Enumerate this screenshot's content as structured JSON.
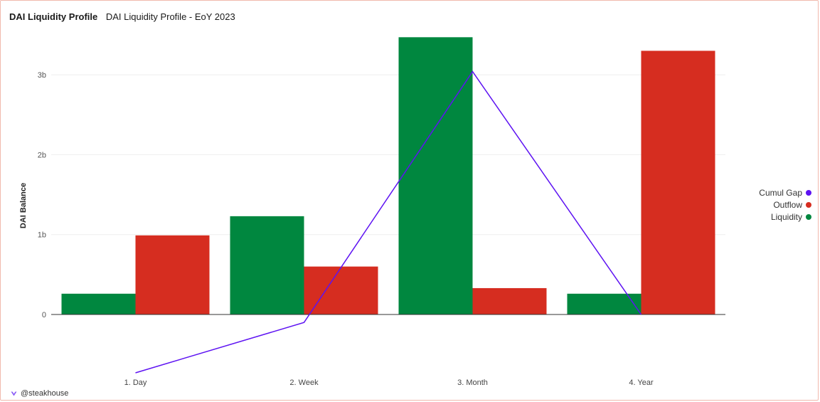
{
  "header": {
    "title": "DAI Liquidity Profile",
    "subtitle": "DAI Liquidity Profile - EoY 2023"
  },
  "footer": {
    "icon": "steakhouse-logo-icon",
    "handle": "@steakhouse"
  },
  "colors": {
    "liquidity": "#00873f",
    "outflow": "#d62d20",
    "cumul_gap": "#5d12f2",
    "grid": "#eeeeee",
    "axis": "#333333"
  },
  "chart_data": {
    "type": "bar",
    "categories": [
      "1. Day",
      "2. Week",
      "3. Month",
      "4. Year"
    ],
    "ylabel": "DAI Balance",
    "ylim": [
      -0.73,
      3.47
    ],
    "yticks": [
      {
        "value": 0,
        "label": "0"
      },
      {
        "value": 1,
        "label": "1b"
      },
      {
        "value": 2,
        "label": "2b"
      },
      {
        "value": 3,
        "label": "3b"
      }
    ],
    "grid": true,
    "legend_position": "right",
    "series": [
      {
        "name": "Liquidity",
        "type": "bar",
        "color": "#00873f",
        "values": [
          0.26,
          1.23,
          3.47,
          0.26
        ]
      },
      {
        "name": "Outflow",
        "type": "bar",
        "color": "#d62d20",
        "values": [
          0.99,
          0.6,
          0.33,
          3.3
        ]
      },
      {
        "name": "Cumul Gap",
        "type": "line",
        "color": "#5d12f2",
        "values": [
          -0.73,
          -0.1,
          3.04,
          0.0
        ]
      }
    ],
    "legend": [
      "Cumul Gap",
      "Outflow",
      "Liquidity"
    ]
  }
}
